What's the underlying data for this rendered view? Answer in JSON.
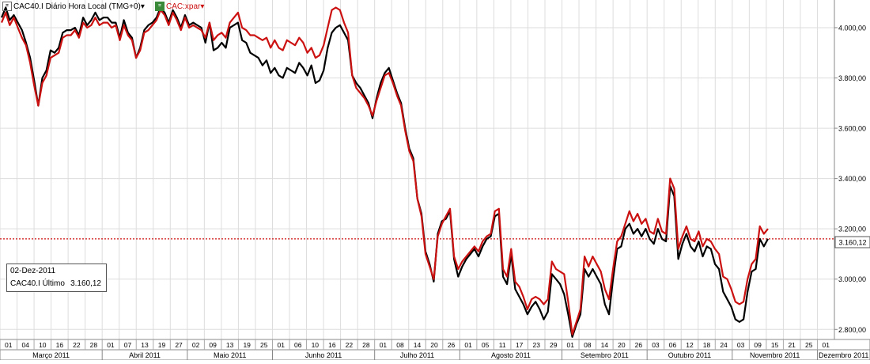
{
  "header": {
    "series1_label": "CAC40.I Diário Hora Local (TMG+0)",
    "series2_label": "CAC:xpar"
  },
  "tooltip": {
    "date": "02-Dez-2011",
    "label": "CAC40.I Último",
    "value": "3.160,12"
  },
  "price_tag": "3.160,12",
  "colors": {
    "series1": "#000000",
    "series2": "#cc1111",
    "refline": "#cc1111",
    "grid": "#dddddd"
  },
  "chart_data": {
    "type": "line",
    "ylim": [
      2760,
      4110
    ],
    "y_ticks": [
      "4.000,00",
      "3.800,00",
      "3.600,00",
      "3.400,00",
      "3.200,00",
      "3.000,00",
      "2.800,00"
    ],
    "y_tick_values": [
      4000,
      3800,
      3600,
      3400,
      3200,
      3000,
      2800
    ],
    "reference_line": 3160.12,
    "day_labels": [
      "01",
      "04",
      "10",
      "16",
      "22",
      "28",
      "01",
      "07",
      "13",
      "19",
      "27",
      "02",
      "09",
      "13",
      "19",
      "25",
      "01",
      "06",
      "10",
      "16",
      "22",
      "28",
      "01",
      "08",
      "14",
      "20",
      "26",
      "01",
      "05",
      "11",
      "17",
      "23",
      "29",
      "01",
      "08",
      "14",
      "20",
      "26",
      "03",
      "06",
      "12",
      "18",
      "24",
      "03",
      "09",
      "15",
      "21",
      "25",
      "01"
    ],
    "months": [
      "Março 2011",
      "Abril 2011",
      "Maio 2011",
      "Junho 2011",
      "Julho 2011",
      "Agosto 2011",
      "Setembro 2011",
      "Outubro 2011",
      "Novembro 2011",
      "Dezembro 2011"
    ],
    "series": [
      {
        "name": "CAC40.I",
        "values": [
          4040,
          4080,
          4030,
          4050,
          4020,
          3990,
          3940,
          3880,
          3790,
          3690,
          3800,
          3830,
          3910,
          3900,
          3920,
          3980,
          3990,
          3990,
          4000,
          3970,
          4040,
          4010,
          4030,
          4060,
          4030,
          4040,
          4040,
          4020,
          4020,
          3960,
          4030,
          3980,
          3960,
          3880,
          3920,
          3990,
          4010,
          4020,
          4040,
          4080,
          4060,
          4020,
          4070,
          4040,
          4000,
          4050,
          4010,
          4020,
          4010,
          4000,
          3940,
          4020,
          3910,
          3920,
          3940,
          3920,
          4000,
          4010,
          4020,
          3950,
          3940,
          3900,
          3890,
          3880,
          3850,
          3870,
          3820,
          3840,
          3810,
          3800,
          3840,
          3830,
          3820,
          3860,
          3840,
          3810,
          3850,
          3780,
          3790,
          3830,
          3920,
          3980,
          4000,
          4010,
          3980,
          3950,
          3810,
          3780,
          3760,
          3730,
          3700,
          3640,
          3720,
          3780,
          3820,
          3840,
          3790,
          3740,
          3700,
          3600,
          3520,
          3480,
          3320,
          3260,
          3110,
          3060,
          2990,
          3180,
          3230,
          3240,
          3270,
          3080,
          3010,
          3050,
          3080,
          3100,
          3120,
          3090,
          3130,
          3160,
          3170,
          3250,
          3260,
          3010,
          2980,
          3100,
          2960,
          2930,
          2900,
          2860,
          2890,
          2910,
          2880,
          2840,
          2870,
          3020,
          3000,
          2980,
          2940,
          2860,
          2770,
          2820,
          2860,
          3040,
          3010,
          3040,
          3010,
          2980,
          2900,
          2860,
          3000,
          3120,
          3130,
          3200,
          3220,
          3180,
          3200,
          3170,
          3200,
          3160,
          3140,
          3200,
          3160,
          3150,
          3370,
          3330,
          3080,
          3140,
          3180,
          3130,
          3110,
          3150,
          3090,
          3130,
          3120,
          3060,
          3040,
          2950,
          2920,
          2890,
          2840,
          2830,
          2840,
          2950,
          3030,
          3040,
          3160,
          3130,
          3160
        ]
      },
      {
        "name": "CAC:xpar",
        "values": [
          4020,
          4060,
          4010,
          4040,
          4000,
          3960,
          3930,
          3860,
          3770,
          3690,
          3780,
          3810,
          3880,
          3890,
          3900,
          3960,
          3970,
          3970,
          3990,
          3960,
          4020,
          4000,
          4010,
          4040,
          4010,
          4020,
          4020,
          4000,
          4010,
          3950,
          4010,
          3970,
          3950,
          3880,
          3910,
          3980,
          3990,
          4010,
          4030,
          4070,
          4050,
          4010,
          4060,
          4030,
          3990,
          4040,
          4000,
          4010,
          4000,
          3990,
          3960,
          4020,
          3950,
          3970,
          3980,
          3960,
          4020,
          4040,
          4060,
          4000,
          3990,
          3970,
          3970,
          3960,
          3950,
          3960,
          3920,
          3950,
          3920,
          3910,
          3950,
          3940,
          3930,
          3960,
          3940,
          3900,
          3920,
          3880,
          3890,
          3930,
          4000,
          4070,
          4080,
          4070,
          4020,
          3980,
          3810,
          3760,
          3740,
          3720,
          3690,
          3650,
          3710,
          3760,
          3810,
          3820,
          3780,
          3730,
          3690,
          3590,
          3510,
          3470,
          3320,
          3250,
          3100,
          3050,
          3000,
          3170,
          3220,
          3250,
          3280,
          3090,
          3040,
          3070,
          3090,
          3110,
          3130,
          3110,
          3150,
          3170,
          3180,
          3270,
          3280,
          3040,
          3010,
          3120,
          2990,
          2970,
          2930,
          2880,
          2920,
          2930,
          2920,
          2900,
          2920,
          3070,
          3040,
          3030,
          3020,
          2910,
          2780,
          2830,
          2880,
          3090,
          3050,
          3090,
          3060,
          3030,
          2960,
          2920,
          3040,
          3150,
          3170,
          3220,
          3270,
          3230,
          3260,
          3220,
          3240,
          3190,
          3180,
          3240,
          3190,
          3180,
          3400,
          3360,
          3120,
          3170,
          3210,
          3160,
          3150,
          3190,
          3130,
          3160,
          3150,
          3120,
          3100,
          3010,
          3000,
          2960,
          2910,
          2900,
          2910,
          3000,
          3060,
          3080,
          3210,
          3180,
          3200
        ]
      }
    ]
  }
}
